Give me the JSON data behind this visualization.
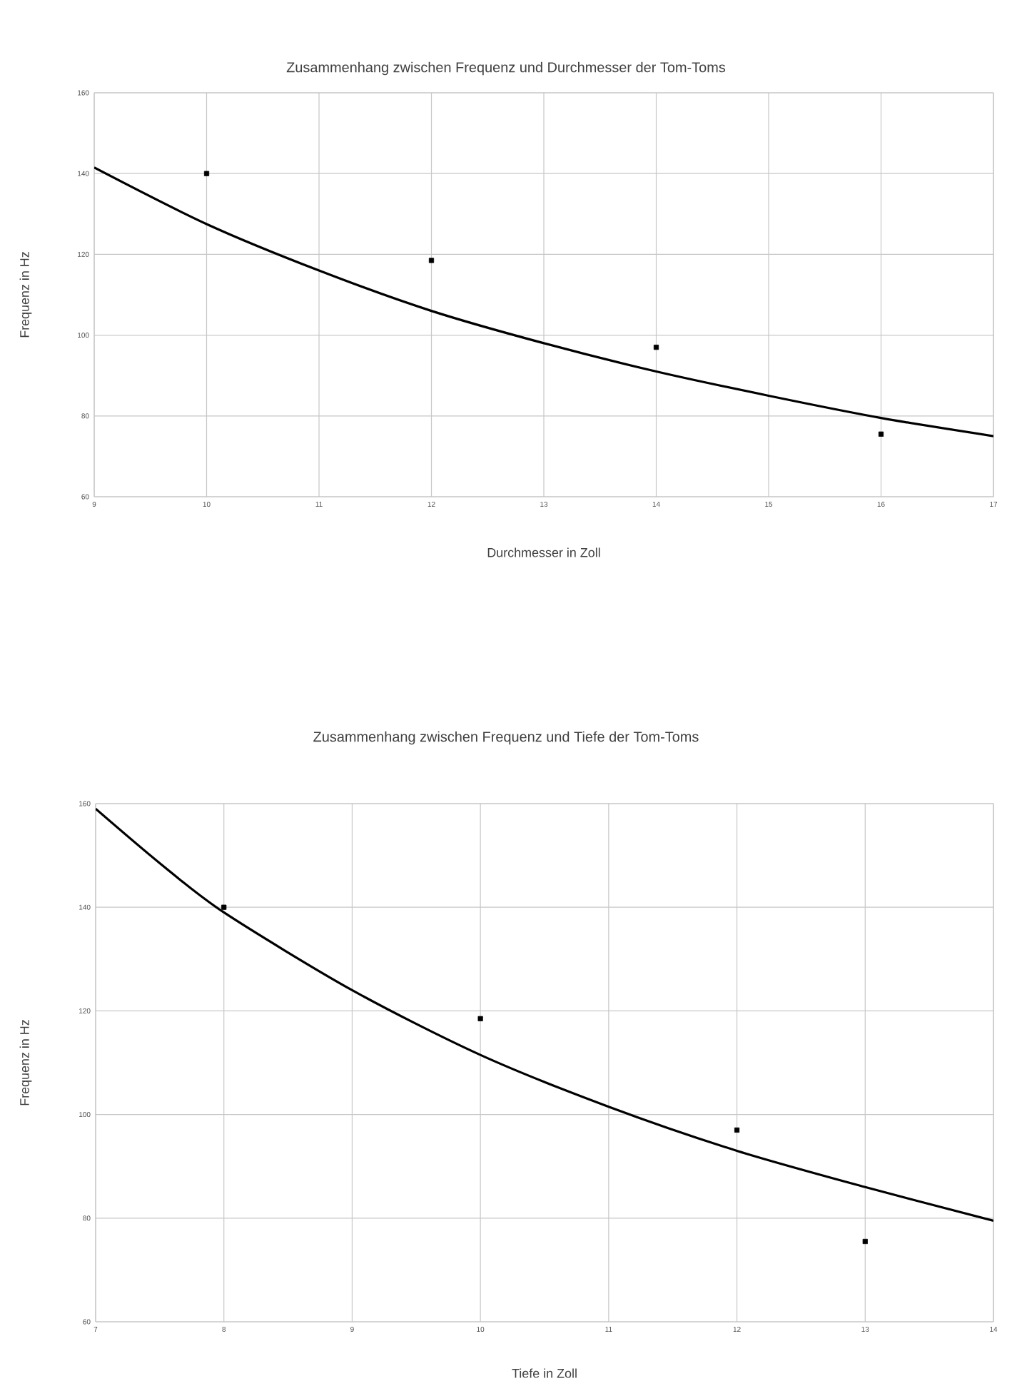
{
  "chart_data": [
    {
      "type": "scatter",
      "title": "Zusammenhang zwischen Frequenz und Durchmesser der Tom-Toms",
      "xlabel": "Durchmesser in Zoll",
      "ylabel": "Frequenz in Hz",
      "xlim": [
        9,
        17
      ],
      "ylim": [
        60,
        160
      ],
      "xticks": [
        9,
        10,
        11,
        12,
        13,
        14,
        15,
        16,
        17
      ],
      "yticks": [
        60,
        80,
        100,
        120,
        140,
        160
      ],
      "grid": true,
      "series": [
        {
          "marker": "square",
          "color": "#000000",
          "x": [
            10,
            12,
            14,
            16
          ],
          "values": [
            140,
            118.5,
            97,
            75.5
          ]
        },
        {
          "type": "line",
          "marker": "none",
          "line_style": "solid",
          "color": "#000000",
          "x": [
            9,
            10,
            11,
            12,
            13,
            14,
            15,
            16,
            17
          ],
          "values": [
            141.5,
            127.5,
            116,
            106,
            98,
            91,
            85,
            79.5,
            75
          ]
        }
      ]
    },
    {
      "type": "scatter",
      "title": "Zusammenhang zwischen Frequenz und Tiefe der Tom-Toms",
      "xlabel": "Tiefe in Zoll",
      "ylabel": "Frequenz in Hz",
      "xlim": [
        7,
        14
      ],
      "ylim": [
        60,
        160
      ],
      "xticks": [
        7,
        8,
        9,
        10,
        11,
        12,
        13,
        14
      ],
      "yticks": [
        60,
        80,
        100,
        120,
        140,
        160
      ],
      "grid": true,
      "series": [
        {
          "marker": "square",
          "color": "#000000",
          "x": [
            8,
            10,
            12,
            13
          ],
          "values": [
            140,
            118.5,
            97,
            75.5
          ]
        },
        {
          "type": "line",
          "marker": "none",
          "line_style": "solid",
          "color": "#000000",
          "x": [
            7,
            7.5,
            8,
            9,
            10,
            11,
            12,
            13,
            14
          ],
          "values": [
            159,
            148.5,
            139,
            124,
            111.5,
            101.5,
            93,
            86,
            79.5
          ]
        }
      ]
    }
  ]
}
